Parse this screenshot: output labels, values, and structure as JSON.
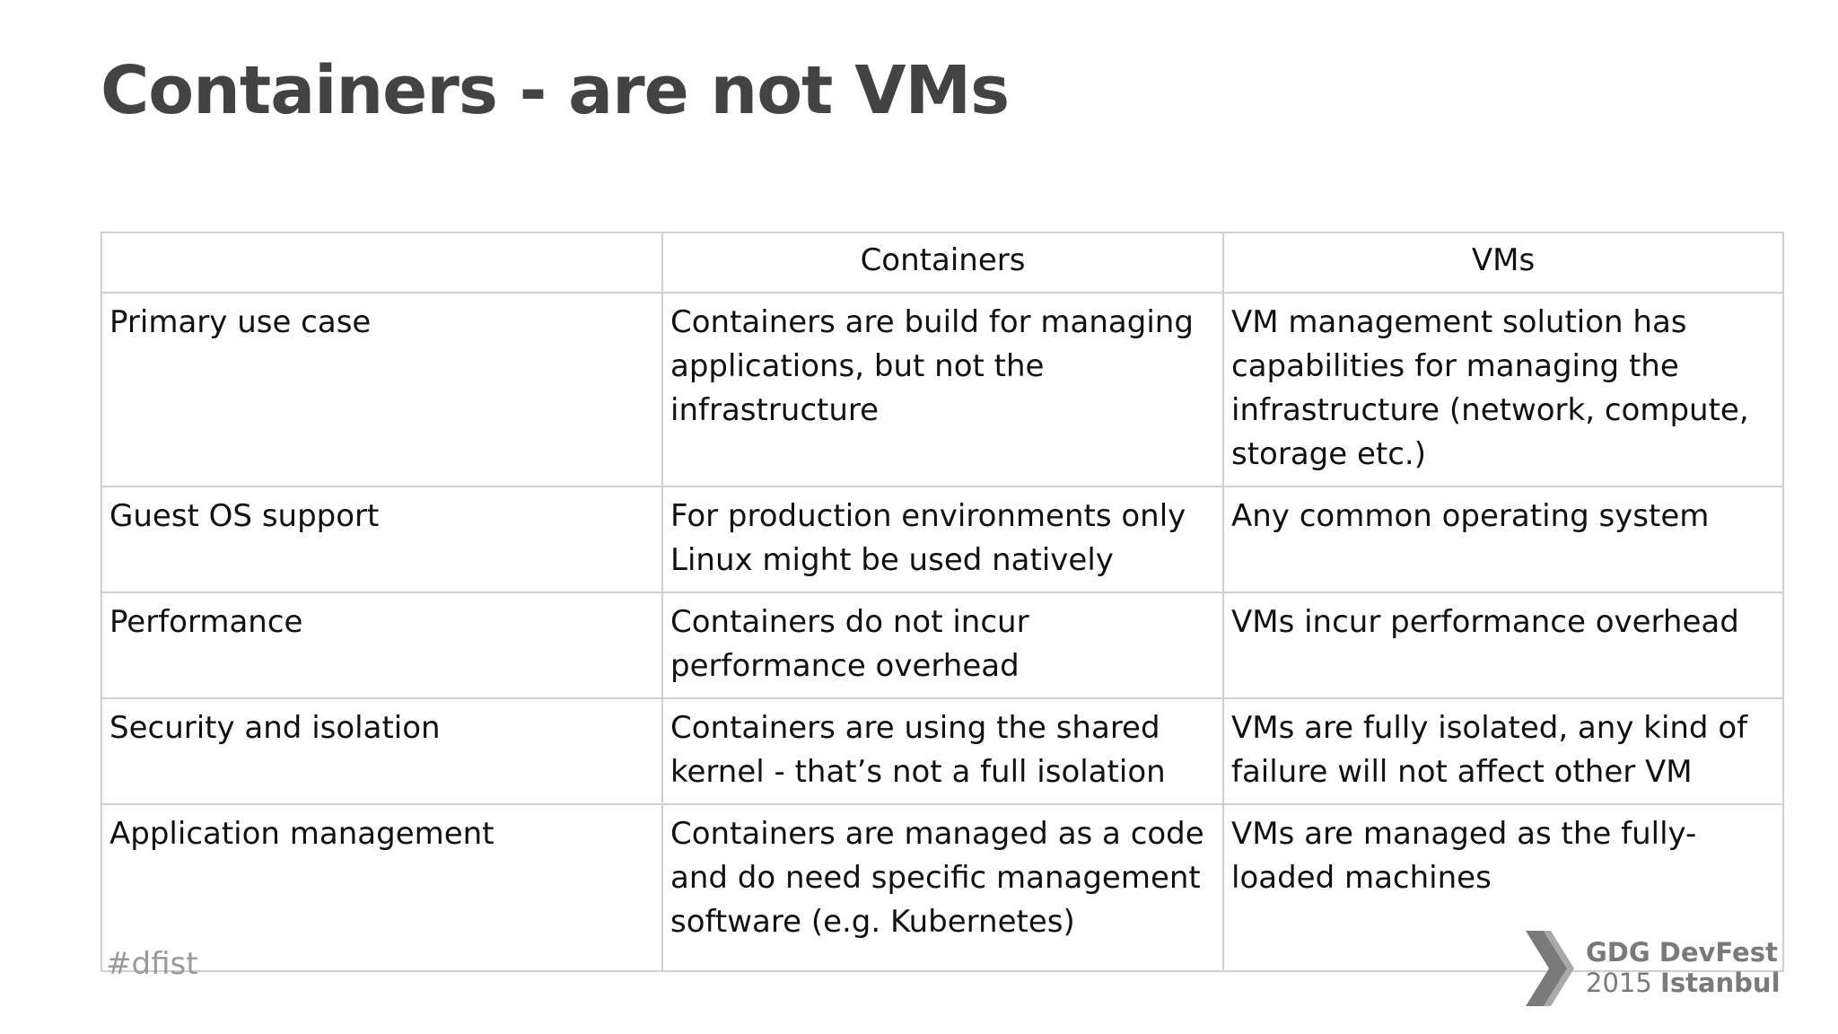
{
  "slide": {
    "title": "Containers - are not VMs",
    "hashtag": "#dfist"
  },
  "table": {
    "headers": [
      "",
      "Containers",
      "VMs"
    ],
    "rows": [
      {
        "label": "Primary use case",
        "containers": "Containers are build for managing applications, but not the infrastructure",
        "vms": "VM management solution has capabilities for managing the infrastructure (network, compute, storage etc.)"
      },
      {
        "label": "Guest OS support",
        "containers": "For production environments only Linux might be used natively",
        "vms": "Any common operating system"
      },
      {
        "label": "Performance",
        "containers": "Containers do not incur performance overhead",
        "vms": "VMs incur performance overhead"
      },
      {
        "label": "Security and isolation",
        "containers": "Containers are using the shared kernel - that’s not a full isolation",
        "vms": "VMs are fully isolated, any kind of failure will not affect other VM"
      },
      {
        "label": "Application management",
        "containers": "Containers are managed as a code and do need specific management software (e.g. Kubernetes)",
        "vms": "VMs are managed as the fully-loaded machines"
      }
    ]
  },
  "logo": {
    "icon": "chevron-logo-icon",
    "color": "#7a7a7a",
    "line1": "GDG DevFest",
    "year": "2015",
    "city": "Istanbul"
  }
}
